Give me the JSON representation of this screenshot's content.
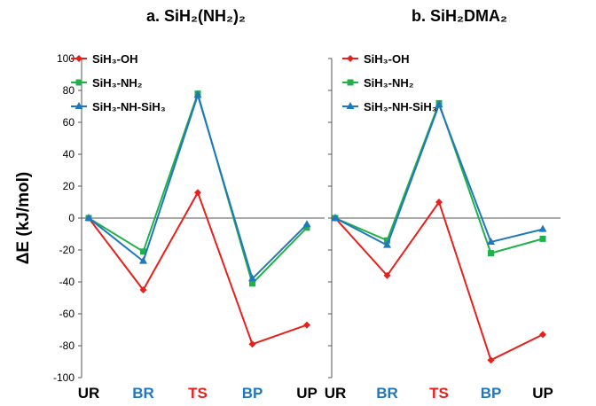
{
  "chart_data": [
    {
      "type": "line",
      "title": "a. SiH₂(NH₂)₂",
      "ylabel": "ΔE (kJ/mol)",
      "ylim": [
        -100,
        100
      ],
      "yticks": [
        "100",
        "80",
        "60",
        "40",
        "20",
        "0",
        "-20",
        "-40",
        "-60",
        "-80",
        "-100"
      ],
      "categories": [
        "UR",
        "BR",
        "TS",
        "BP",
        "UP"
      ],
      "category_colors": [
        "#000000",
        "#1f77c0",
        "#e8201c",
        "#1f77c0",
        "#000000"
      ],
      "legend_position": "top-left",
      "series": [
        {
          "name": "SiH₃-OH",
          "color": "#e8201c",
          "marker": "diamond",
          "values": [
            0,
            -45,
            16,
            -79,
            -67
          ]
        },
        {
          "name": "SiH₃-NH₂",
          "color": "#22b04b",
          "marker": "square",
          "values": [
            0,
            -21,
            78,
            -41,
            -6
          ]
        },
        {
          "name": "SiH₃-NH-SiH₃",
          "color": "#1f77c0",
          "marker": "triangle",
          "values": [
            0,
            -27,
            77,
            -38,
            -4
          ]
        }
      ]
    },
    {
      "type": "line",
      "title": "b. SiH₂DMA₂",
      "ylim": [
        -100,
        100
      ],
      "categories": [
        "UR",
        "BR",
        "TS",
        "BP",
        "UP"
      ],
      "category_colors": [
        "#000000",
        "#1f77c0",
        "#e8201c",
        "#1f77c0",
        "#000000"
      ],
      "legend_position": "top-left",
      "series": [
        {
          "name": "SiH₃-OH",
          "color": "#e8201c",
          "marker": "diamond",
          "values": [
            0,
            -36,
            10,
            -89,
            -73
          ]
        },
        {
          "name": "SiH₃-NH₂",
          "color": "#22b04b",
          "marker": "square",
          "values": [
            0,
            -14,
            72,
            -22,
            -13
          ]
        },
        {
          "name": "SiH₃-NH-SiH₃",
          "color": "#1f77c0",
          "marker": "triangle",
          "values": [
            0,
            -17,
            71,
            -15,
            -7
          ]
        }
      ]
    }
  ]
}
